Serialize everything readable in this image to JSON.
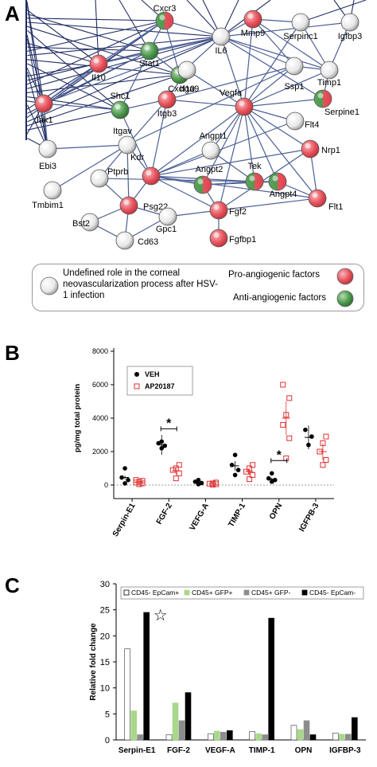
{
  "panels": {
    "a": "A",
    "b": "B",
    "c": "C"
  },
  "network": {
    "nodes": [
      {
        "id": "cxcr3",
        "label": "Cxcr3",
        "type": "mixed"
      },
      {
        "id": "mmp9",
        "label": "Mmp9",
        "type": "pro"
      },
      {
        "id": "serpinc1",
        "label": "Serpinc1",
        "type": "undefined"
      },
      {
        "id": "igfbp3",
        "label": "Igfbp3",
        "type": "undefined"
      },
      {
        "id": "stat1",
        "label": "Stat1",
        "type": "green"
      },
      {
        "id": "il6",
        "label": "IL6",
        "type": "undefined"
      },
      {
        "id": "il10",
        "label": "Il10",
        "type": "pro"
      },
      {
        "id": "cxcl10",
        "label": "Cxcl10",
        "type": "green"
      },
      {
        "id": "itga9",
        "label": "Itga9",
        "type": "undefined"
      },
      {
        "id": "ssp1",
        "label": "Ssp1",
        "type": "undefined"
      },
      {
        "id": "timp1",
        "label": "Timp1",
        "type": "undefined"
      },
      {
        "id": "shc1",
        "label": "Shc1",
        "type": "green"
      },
      {
        "id": "serpine1",
        "label": "Serpine1",
        "type": "mixed"
      },
      {
        "id": "jak1",
        "label": "Jak1",
        "type": "pro"
      },
      {
        "id": "itgb3",
        "label": "Itgb3",
        "type": "pro"
      },
      {
        "id": "vegfa",
        "label": "Vegfa",
        "type": "pro"
      },
      {
        "id": "flt4",
        "label": "Flt4",
        "type": "undefined"
      },
      {
        "id": "itgav",
        "label": "Itgav",
        "type": "undefined"
      },
      {
        "id": "angpt1",
        "label": "Angpt1",
        "type": "undefined"
      },
      {
        "id": "nrp1",
        "label": "Nrp1",
        "type": "pro"
      },
      {
        "id": "ebi3",
        "label": "Ebi3",
        "type": "undefined"
      },
      {
        "id": "ptprb",
        "label": "Ptprb",
        "type": "undefined"
      },
      {
        "id": "kdr",
        "label": "Kdr",
        "type": "pro"
      },
      {
        "id": "tek",
        "label": "Tek",
        "type": "mixed"
      },
      {
        "id": "angpt2",
        "label": "Angpt2",
        "type": "mixed"
      },
      {
        "id": "angpt4",
        "label": "Angpt4",
        "type": "mixed"
      },
      {
        "id": "tmbim1",
        "label": "Tmbim1",
        "type": "undefined"
      },
      {
        "id": "flt1",
        "label": "Flt1",
        "type": "pro"
      },
      {
        "id": "psg22",
        "label": "Psg22",
        "type": "pro"
      },
      {
        "id": "fgf2",
        "label": "Fgf2",
        "type": "pro"
      },
      {
        "id": "bst2",
        "label": "Bst2",
        "type": "undefined"
      },
      {
        "id": "gpc1",
        "label": "Gpc1",
        "type": "undefined"
      },
      {
        "id": "cd63",
        "label": "Cd63",
        "type": "undefined"
      },
      {
        "id": "fgfbp1",
        "label": "Fgfbp1",
        "type": "pro"
      }
    ],
    "edges": [
      [
        "cxcr3",
        "stat1"
      ],
      [
        "cxcr3",
        "il6"
      ],
      [
        "cxcr3",
        "cxcl10"
      ],
      [
        "cxcr3",
        "jak1"
      ],
      [
        "cxcr3",
        "il10"
      ],
      [
        "mmp9",
        "il6"
      ],
      [
        "mmp9",
        "serpinc1"
      ],
      [
        "mmp9",
        "timp1"
      ],
      [
        "mmp9",
        "ssp1"
      ],
      [
        "mmp9",
        "vegfa"
      ],
      [
        "serpinc1",
        "timp1"
      ],
      [
        "serpinc1",
        "vegfa"
      ],
      [
        "igfbp3",
        "timp1"
      ],
      [
        "igfbp3",
        "il6"
      ],
      [
        "stat1",
        "jak1"
      ],
      [
        "stat1",
        "il10"
      ],
      [
        "stat1",
        "il6"
      ],
      [
        "stat1",
        "cxcl10"
      ],
      [
        "stat1",
        "shc1"
      ],
      [
        "il6",
        "il10"
      ],
      [
        "il6",
        "jak1"
      ],
      [
        "il6",
        "vegfa"
      ],
      [
        "il6",
        "ssp1"
      ],
      [
        "il6",
        "timp1"
      ],
      [
        "il6",
        "serpine1"
      ],
      [
        "il6",
        "cxcl10"
      ],
      [
        "il10",
        "jak1"
      ],
      [
        "itga9",
        "vegfa"
      ],
      [
        "itga9",
        "itgb3"
      ],
      [
        "ssp1",
        "itgb3"
      ],
      [
        "ssp1",
        "vegfa"
      ],
      [
        "ssp1",
        "itgav"
      ],
      [
        "timp1",
        "vegfa"
      ],
      [
        "timp1",
        "serpine1"
      ],
      [
        "timp1",
        "ssp1"
      ],
      [
        "shc1",
        "jak1"
      ],
      [
        "shc1",
        "itgb3"
      ],
      [
        "shc1",
        "kdr"
      ],
      [
        "itgb3",
        "vegfa"
      ],
      [
        "itgb3",
        "itgav"
      ],
      [
        "itgb3",
        "kdr"
      ],
      [
        "vegfa",
        "serpine1"
      ],
      [
        "vegfa",
        "nrp1"
      ],
      [
        "vegfa",
        "flt1"
      ],
      [
        "vegfa",
        "kdr"
      ],
      [
        "vegfa",
        "angpt1"
      ],
      [
        "vegfa",
        "angpt2"
      ],
      [
        "vegfa",
        "tek"
      ],
      [
        "vegfa",
        "fgf2"
      ],
      [
        "vegfa",
        "flt4"
      ],
      [
        "vegfa",
        "angpt4"
      ],
      [
        "itgav",
        "kdr"
      ],
      [
        "itgav",
        "ptprb"
      ],
      [
        "itgav",
        "psg22"
      ],
      [
        "itgav",
        "tmbim1"
      ],
      [
        "itgav",
        "ebi3"
      ],
      [
        "kdr",
        "nrp1"
      ],
      [
        "kdr",
        "flt1"
      ],
      [
        "kdr",
        "angpt2"
      ],
      [
        "kdr",
        "tek"
      ],
      [
        "kdr",
        "fgf2"
      ],
      [
        "kdr",
        "angpt1"
      ],
      [
        "kdr",
        "flt4"
      ],
      [
        "tek",
        "angpt1"
      ],
      [
        "tek",
        "angpt2"
      ],
      [
        "tek",
        "angpt4"
      ],
      [
        "angpt2",
        "angpt4"
      ],
      [
        "nrp1",
        "flt1"
      ],
      [
        "nrp1",
        "fgf2"
      ],
      [
        "flt1",
        "fgf2"
      ],
      [
        "flt1",
        "angpt4"
      ],
      [
        "psg22",
        "ptprb"
      ],
      [
        "psg22",
        "bst2"
      ],
      [
        "psg22",
        "cd63"
      ],
      [
        "psg22",
        "gpc1"
      ],
      [
        "psg22",
        "kdr"
      ],
      [
        "fgf2",
        "fgfbp1"
      ],
      [
        "fgf2",
        "gpc1"
      ],
      [
        "fgf2",
        "angpt2"
      ],
      [
        "bst2",
        "cd63"
      ],
      [
        "gpc1",
        "cd63"
      ],
      [
        "ptprb",
        "tek"
      ],
      [
        "jak1",
        "ebi3"
      ]
    ]
  },
  "legend": {
    "undefined_text": "Undefined role in the corneal neovascularization process after HSV-1 infection",
    "pro_text": "Pro-angiogenic factors",
    "anti_text": "Anti-angiogenic factors"
  },
  "colors": {
    "pro": "#e8535d",
    "anti": "#4f9a4f",
    "undefined": "#e4e4e4",
    "ap20187": "#e03030",
    "bar_green": "#a8d88a",
    "bar_gray": "#8c8c8c"
  },
  "chart_data": [
    {
      "type": "scatter",
      "ylabel": "pg/mg total protein",
      "ylim": [
        0,
        8000
      ],
      "yticks": [
        0,
        2000,
        4000,
        6000,
        8000
      ],
      "categories": [
        "Serpin-E1",
        "FGF-2",
        "VEFG-A",
        "TIMP-1",
        "OPN",
        "IGFPB-3"
      ],
      "series": [
        {
          "name": "VEH",
          "points": [
            [
              0,
              100
            ],
            [
              0,
              300
            ],
            [
              0,
              450
            ],
            [
              0,
              1000
            ],
            [
              1,
              2200
            ],
            [
              1,
              2350
            ],
            [
              1,
              2500
            ],
            [
              1,
              2600
            ],
            [
              2,
              50
            ],
            [
              2,
              120
            ],
            [
              2,
              200
            ],
            [
              2,
              300
            ],
            [
              3,
              600
            ],
            [
              3,
              900
            ],
            [
              3,
              1200
            ],
            [
              3,
              1800
            ],
            [
              4,
              200
            ],
            [
              4,
              300
            ],
            [
              4,
              400
            ],
            [
              4,
              700
            ],
            [
              5,
              2400
            ],
            [
              5,
              2900
            ],
            [
              5,
              3300
            ]
          ],
          "means": [
            450,
            2400,
            150,
            1150,
            350,
            2850
          ]
        },
        {
          "name": "AP20187",
          "points": [
            [
              0,
              50
            ],
            [
              0,
              100
            ],
            [
              0,
              150
            ],
            [
              0,
              200
            ],
            [
              0,
              250
            ],
            [
              0,
              300
            ],
            [
              1,
              400
            ],
            [
              1,
              700
            ],
            [
              1,
              900
            ],
            [
              1,
              1000
            ],
            [
              1,
              1200
            ],
            [
              2,
              20
            ],
            [
              2,
              50
            ],
            [
              2,
              80
            ],
            [
              2,
              100
            ],
            [
              2,
              150
            ],
            [
              3,
              350
            ],
            [
              3,
              600
            ],
            [
              3,
              800
            ],
            [
              3,
              1000
            ],
            [
              3,
              1200
            ],
            [
              4,
              1600
            ],
            [
              4,
              2800
            ],
            [
              4,
              3600
            ],
            [
              4,
              4200
            ],
            [
              4,
              5200
            ],
            [
              4,
              6000
            ],
            [
              5,
              1200
            ],
            [
              5,
              1500
            ],
            [
              5,
              2000
            ],
            [
              5,
              2500
            ],
            [
              5,
              2900
            ]
          ],
          "means": [
            180,
            850,
            80,
            800,
            4000,
            2000
          ]
        }
      ],
      "significance": [
        {
          "category": "FGF-2",
          "label": "*"
        },
        {
          "category": "OPN",
          "label": "*"
        }
      ]
    },
    {
      "type": "bar",
      "ylabel": "Relative fold change",
      "ylim": [
        0,
        30
      ],
      "yticks": [
        0,
        5,
        10,
        15,
        20,
        25,
        30
      ],
      "categories": [
        "Serpin-E1",
        "FGF-2",
        "VEGF-A",
        "TIMP-1",
        "OPN",
        "IGFBP-3"
      ],
      "series": [
        {
          "name": "CD45- EpCam+",
          "values": [
            17.5,
            1.0,
            1.2,
            1.6,
            2.8,
            1.3
          ]
        },
        {
          "name": "CD45+ GFP+",
          "values": [
            5.6,
            7.1,
            1.7,
            1.2,
            2.0,
            1.1
          ]
        },
        {
          "name": "CD45+ GFP-",
          "values": [
            1.0,
            3.7,
            1.5,
            1.0,
            3.7,
            1.1
          ]
        },
        {
          "name": "CD45- EpCam-",
          "values": [
            24.5,
            9.1,
            1.8,
            23.4,
            1.0,
            4.3
          ]
        }
      ],
      "annotation": {
        "category": "Serpin-E1",
        "symbol": "☆"
      }
    }
  ]
}
